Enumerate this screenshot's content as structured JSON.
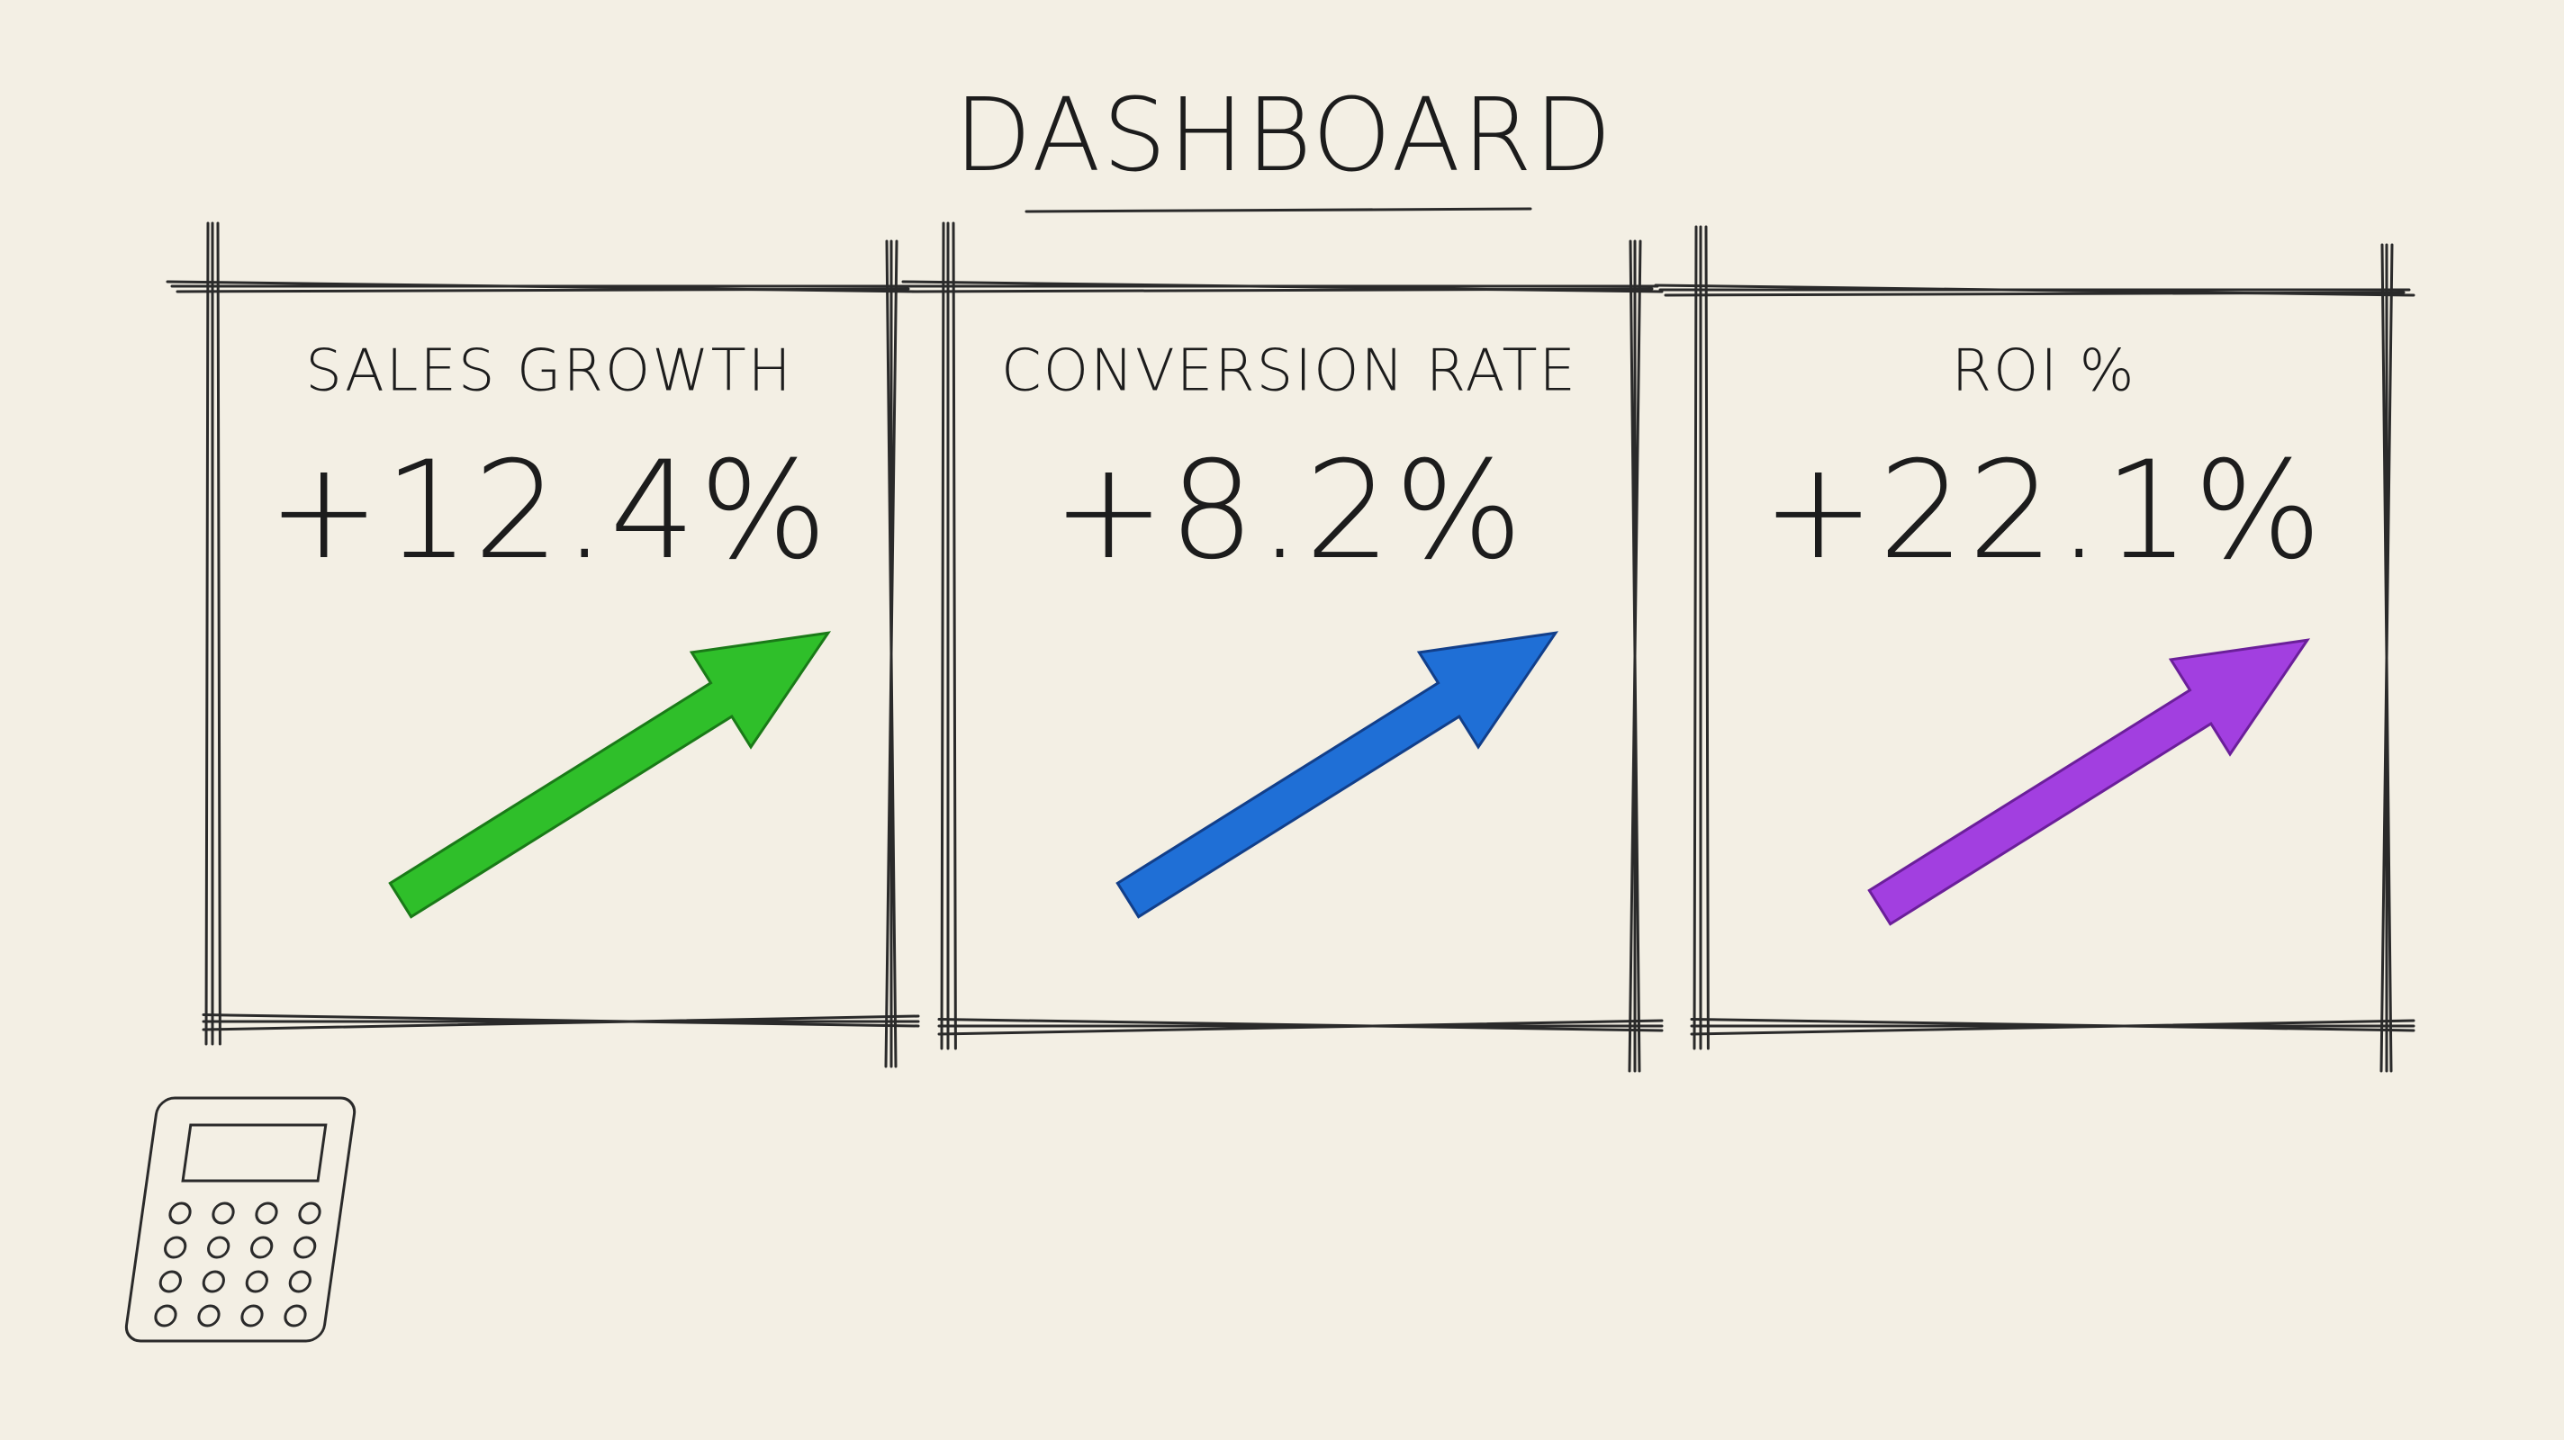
{
  "header": {
    "title": "DASHBOARD"
  },
  "cards": [
    {
      "label": "SALES GROWTH",
      "value": "+12.4%"
    },
    {
      "label": "CONVERSION RATE",
      "value": "+8.2%"
    },
    {
      "label": "ROI %",
      "value": "+22.1%"
    }
  ]
}
